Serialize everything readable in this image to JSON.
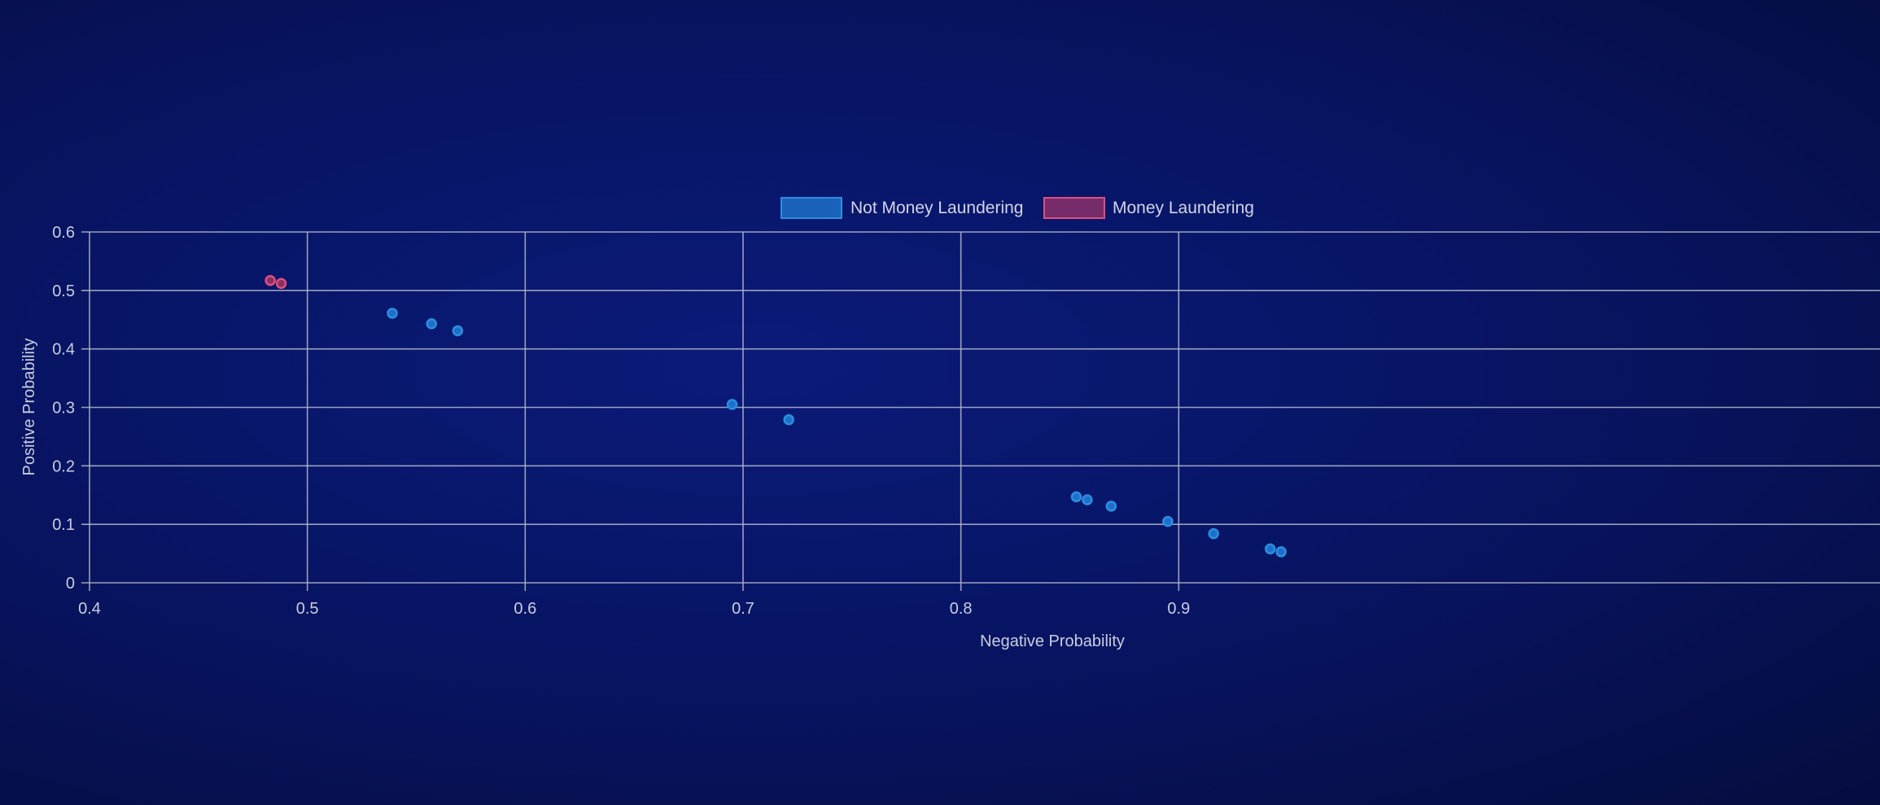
{
  "chart_data": {
    "type": "scatter",
    "title": "",
    "xlabel": "Negative Probability",
    "ylabel": "Positive Probability",
    "xlim": [
      0.4,
      0.96
    ],
    "ylim": [
      0,
      0.6
    ],
    "x_ticks": [
      "0.4",
      "0.5",
      "0.6",
      "0.7",
      "0.8",
      "0.9"
    ],
    "y_ticks": [
      "0",
      "0.1",
      "0.2",
      "0.3",
      "0.4",
      "0.5",
      "0.6"
    ],
    "grid": true,
    "legend_position": "top-center",
    "series": [
      {
        "name": "Not Money Laundering",
        "color": "#2a8fe0",
        "fill": "#1f6fc8",
        "points": [
          {
            "x": 0.539,
            "y": 0.461
          },
          {
            "x": 0.557,
            "y": 0.443
          },
          {
            "x": 0.569,
            "y": 0.431
          },
          {
            "x": 0.695,
            "y": 0.305
          },
          {
            "x": 0.721,
            "y": 0.279
          },
          {
            "x": 0.853,
            "y": 0.147
          },
          {
            "x": 0.858,
            "y": 0.142
          },
          {
            "x": 0.869,
            "y": 0.131
          },
          {
            "x": 0.895,
            "y": 0.105
          },
          {
            "x": 0.916,
            "y": 0.084
          },
          {
            "x": 0.942,
            "y": 0.058
          },
          {
            "x": 0.947,
            "y": 0.053
          }
        ]
      },
      {
        "name": "Money Laundering",
        "color": "#e0507a",
        "fill": "#8a2f6a",
        "points": [
          {
            "x": 0.483,
            "y": 0.517
          },
          {
            "x": 0.488,
            "y": 0.512
          }
        ]
      }
    ]
  }
}
